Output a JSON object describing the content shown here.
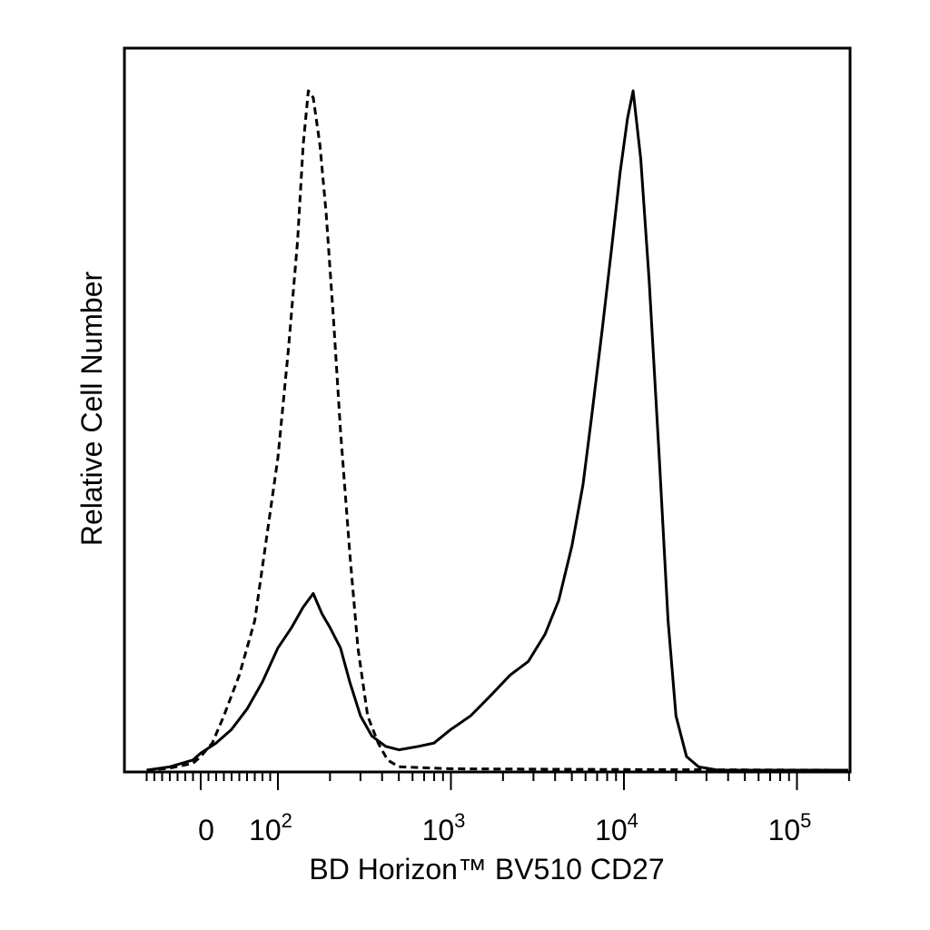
{
  "chart_data": {
    "type": "line",
    "title": "",
    "xlabel": "BD Horizon™ BV510 CD27",
    "ylabel": "Relative Cell Number",
    "x_scale": "biexponential",
    "xlim": [
      -70,
      250000
    ],
    "ylim": [
      0,
      100
    ],
    "grid": false,
    "legend": "none",
    "x_ticks": [
      {
        "value": 0,
        "base": "0",
        "exp": ""
      },
      {
        "value": 100,
        "base": "10",
        "exp": "2"
      },
      {
        "value": 1000,
        "base": "10",
        "exp": "3"
      },
      {
        "value": 10000,
        "base": "10",
        "exp": "4"
      },
      {
        "value": 100000,
        "base": "10",
        "exp": "5"
      }
    ],
    "series": [
      {
        "style": "dashed",
        "color": "#000000",
        "points": [
          [
            -70,
            0
          ],
          [
            -40,
            0.3
          ],
          [
            -10,
            1
          ],
          [
            0,
            2
          ],
          [
            15,
            4
          ],
          [
            30,
            8
          ],
          [
            50,
            14
          ],
          [
            70,
            22
          ],
          [
            85,
            34
          ],
          [
            100,
            46
          ],
          [
            115,
            62
          ],
          [
            130,
            78
          ],
          [
            140,
            92
          ],
          [
            150,
            100
          ],
          [
            160,
            99
          ],
          [
            175,
            92
          ],
          [
            190,
            82
          ],
          [
            210,
            66
          ],
          [
            230,
            50
          ],
          [
            260,
            32
          ],
          [
            290,
            18
          ],
          [
            330,
            8
          ],
          [
            380,
            4
          ],
          [
            430,
            1.5
          ],
          [
            500,
            0.5
          ],
          [
            1000,
            0.2
          ],
          [
            10000,
            0.1
          ],
          [
            250000,
            0
          ]
        ]
      },
      {
        "style": "solid",
        "color": "#000000",
        "points": [
          [
            -70,
            0
          ],
          [
            -40,
            0.5
          ],
          [
            -10,
            1.5
          ],
          [
            0,
            2.5
          ],
          [
            20,
            4
          ],
          [
            40,
            6
          ],
          [
            60,
            9
          ],
          [
            80,
            13
          ],
          [
            100,
            18
          ],
          [
            120,
            21
          ],
          [
            140,
            24
          ],
          [
            160,
            26
          ],
          [
            180,
            23
          ],
          [
            200,
            21
          ],
          [
            230,
            18
          ],
          [
            260,
            13
          ],
          [
            300,
            8
          ],
          [
            350,
            5
          ],
          [
            420,
            3.5
          ],
          [
            500,
            3
          ],
          [
            650,
            3.5
          ],
          [
            800,
            4
          ],
          [
            1000,
            6
          ],
          [
            1300,
            8
          ],
          [
            1700,
            11
          ],
          [
            2200,
            14
          ],
          [
            2800,
            16
          ],
          [
            3500,
            20
          ],
          [
            4200,
            25
          ],
          [
            5000,
            33
          ],
          [
            5800,
            42
          ],
          [
            6500,
            52
          ],
          [
            7500,
            65
          ],
          [
            8500,
            77
          ],
          [
            9500,
            88
          ],
          [
            10500,
            96
          ],
          [
            11300,
            100
          ],
          [
            12500,
            90
          ],
          [
            14000,
            72
          ],
          [
            16000,
            46
          ],
          [
            18000,
            22
          ],
          [
            20000,
            8
          ],
          [
            23000,
            2
          ],
          [
            27000,
            0.5
          ],
          [
            35000,
            0
          ],
          [
            250000,
            0
          ]
        ]
      }
    ]
  }
}
